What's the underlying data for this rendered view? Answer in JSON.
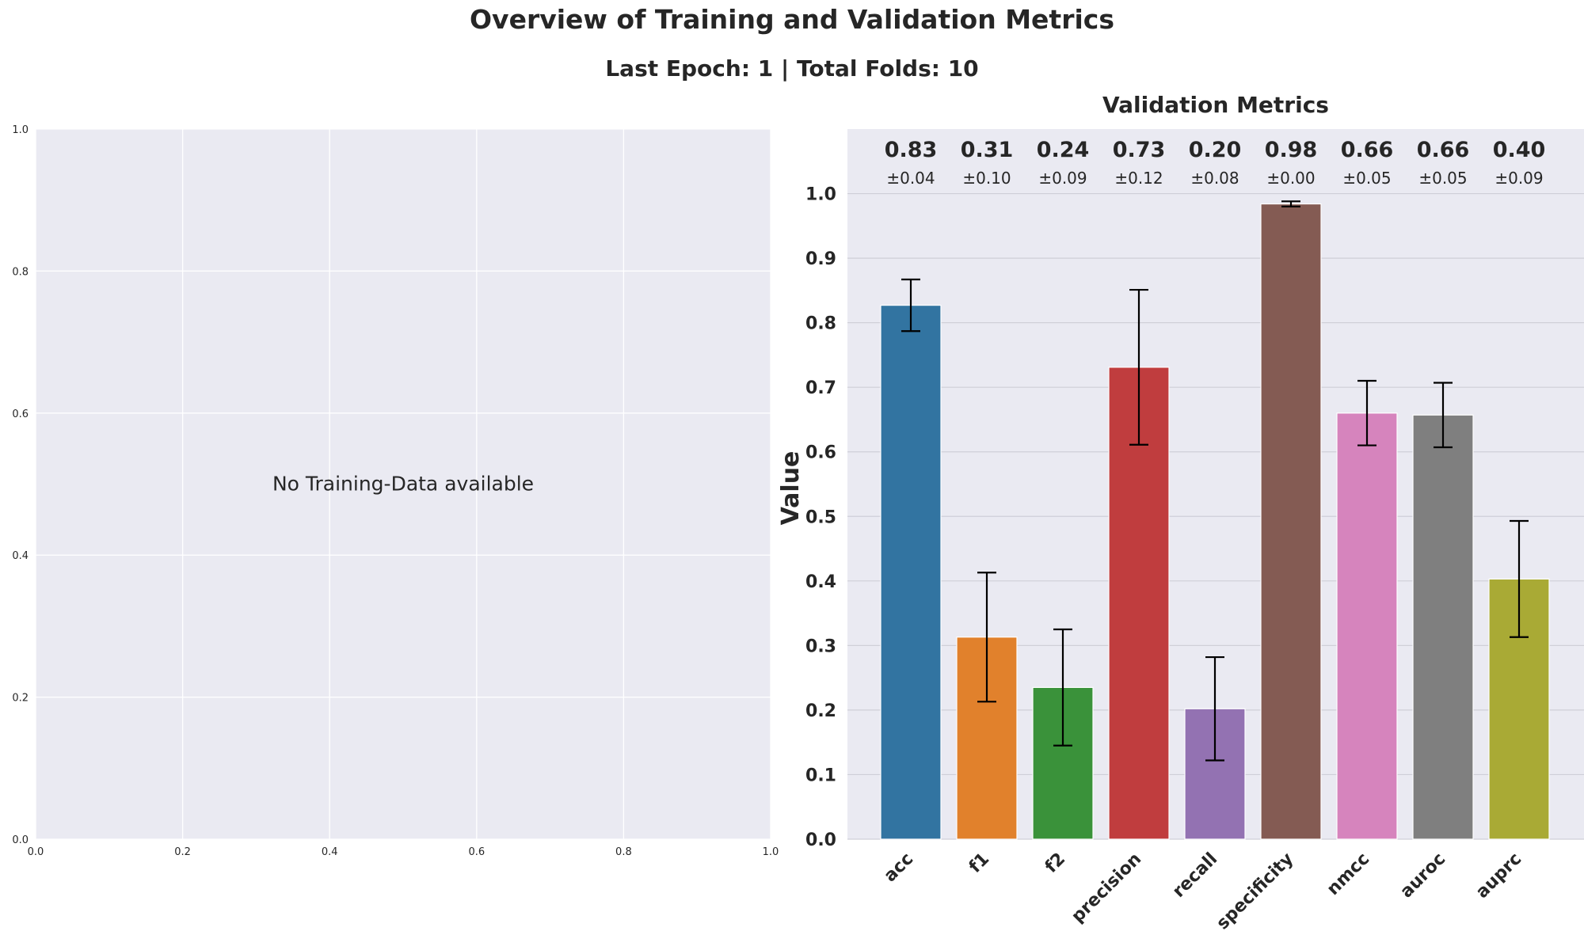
{
  "figure": {
    "title": "Overview of Training and Validation Metrics",
    "subtitle": "Last Epoch: 1 | Total Folds: 10"
  },
  "chart_data": [
    {
      "type": "line",
      "title": "",
      "message": "No Training-Data available",
      "xlabel": "",
      "ylabel": "",
      "xlim": [
        0.0,
        1.0
      ],
      "ylim": [
        0.0,
        1.0
      ],
      "xticks": [
        "0.0",
        "0.2",
        "0.4",
        "0.6",
        "0.8",
        "1.0"
      ],
      "yticks": [
        "0.0",
        "0.2",
        "0.4",
        "0.6",
        "0.8",
        "1.0"
      ],
      "grid": true,
      "background": "#eaeaf2",
      "series": []
    },
    {
      "type": "bar",
      "title": "Validation Metrics",
      "xlabel": "",
      "ylabel": "Value",
      "ylim": [
        0.0,
        1.1
      ],
      "yticks": [
        "0.0",
        "0.1",
        "0.2",
        "0.3",
        "0.4",
        "0.5",
        "0.6",
        "0.7",
        "0.8",
        "0.9",
        "1.0"
      ],
      "grid": true,
      "background": "#eaeaf2",
      "categories": [
        "acc",
        "f1",
        "f2",
        "precision",
        "recall",
        "specificity",
        "nmcc",
        "auroc",
        "auprc"
      ],
      "values": [
        0.827,
        0.313,
        0.235,
        0.731,
        0.202,
        0.984,
        0.66,
        0.657,
        0.403
      ],
      "errors": [
        0.04,
        0.1,
        0.09,
        0.12,
        0.08,
        0.004,
        0.05,
        0.05,
        0.09
      ],
      "value_labels": [
        "0.83",
        "0.31",
        "0.24",
        "0.73",
        "0.20",
        "0.98",
        "0.66",
        "0.66",
        "0.40"
      ],
      "error_labels": [
        "±0.04",
        "±0.10",
        "±0.09",
        "±0.12",
        "±0.08",
        "±0.00",
        "±0.05",
        "±0.05",
        "±0.09"
      ],
      "colors": [
        "#3274a1",
        "#e1812c",
        "#3a923a",
        "#c03d3e",
        "#9372b2",
        "#845b53",
        "#d684bd",
        "#7f7f7f",
        "#a9aa35"
      ]
    }
  ]
}
